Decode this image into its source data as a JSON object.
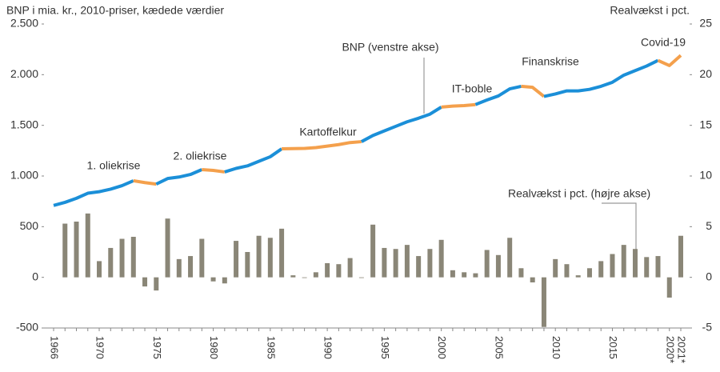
{
  "chart_data": {
    "type": "bar-line",
    "title": "BNP i mia. kr., 2010-priser, kædede værdier",
    "y2_title": "Realvækst i pct.",
    "categories": [
      "1966",
      null,
      null,
      null,
      "1970",
      null,
      null,
      null,
      null,
      "1975",
      null,
      null,
      null,
      null,
      "1980",
      null,
      null,
      null,
      null,
      "1985",
      null,
      null,
      null,
      null,
      "1990",
      null,
      null,
      null,
      null,
      "1995",
      null,
      null,
      null,
      null,
      "2000",
      null,
      null,
      null,
      null,
      "2005",
      null,
      null,
      null,
      null,
      "2010",
      null,
      null,
      null,
      null,
      "2015",
      null,
      null,
      null,
      null,
      "2020*",
      "2021*"
    ],
    "ylim": [
      -500,
      2500
    ],
    "yticks": [
      {
        "value": -500,
        "label": "-500"
      },
      0,
      500,
      {
        "value": 1000,
        "label": "1.000"
      },
      {
        "value": 1500,
        "label": "1.500"
      },
      {
        "value": 2000,
        "label": "2.000"
      },
      {
        "value": 2500,
        "label": "2.500"
      }
    ],
    "y2lim": [
      -5,
      25
    ],
    "y2ticks": [
      -5,
      0,
      5,
      10,
      15,
      20,
      25
    ],
    "series": [
      {
        "name": "BNP (venstre akse)",
        "type": "line",
        "axis": "y",
        "values": [
          709,
          740,
          780,
          830,
          845,
          870,
          905,
          953,
          935,
          920,
          975,
          990,
          1015,
          1063,
          1055,
          1040,
          1075,
          1100,
          1145,
          1190,
          1268,
          1270,
          1272,
          1280,
          1295,
          1310,
          1330,
          1339,
          1400,
          1445,
          1490,
          1535,
          1570,
          1610,
          1680,
          1690,
          1695,
          1705,
          1750,
          1790,
          1860,
          1885,
          1875,
          1785,
          1810,
          1840,
          1840,
          1855,
          1885,
          1925,
          1995,
          2040,
          2085,
          2140,
          2090,
          2190
        ],
        "colors": [
          "#1b8fd8",
          "#1b8fd8",
          "#1b8fd8",
          "#1b8fd8",
          "#1b8fd8",
          "#1b8fd8",
          "#1b8fd8",
          "#1b8fd8",
          "#f4a04c",
          "#f4a04c",
          "#1b8fd8",
          "#1b8fd8",
          "#1b8fd8",
          "#1b8fd8",
          "#f4a04c",
          "#f4a04c",
          "#1b8fd8",
          "#1b8fd8",
          "#1b8fd8",
          "#1b8fd8",
          "#1b8fd8",
          "#f4a04c",
          "#f4a04c",
          "#f4a04c",
          "#f4a04c",
          "#f4a04c",
          "#f4a04c",
          "#f4a04c",
          "#1b8fd8",
          "#1b8fd8",
          "#1b8fd8",
          "#1b8fd8",
          "#1b8fd8",
          "#1b8fd8",
          "#1b8fd8",
          "#f4a04c",
          "#f4a04c",
          "#f4a04c",
          "#1b8fd8",
          "#1b8fd8",
          "#1b8fd8",
          "#1b8fd8",
          "#f4a04c",
          "#f4a04c",
          "#1b8fd8",
          "#1b8fd8",
          "#1b8fd8",
          "#1b8fd8",
          "#1b8fd8",
          "#1b8fd8",
          "#1b8fd8",
          "#1b8fd8",
          "#1b8fd8",
          "#1b8fd8",
          "#f4a04c",
          "#f4a04c"
        ]
      },
      {
        "name": "Realvækst i pct. (højre akse)",
        "type": "bar",
        "axis": "y2",
        "color": "#8a8677",
        "values": [
          null,
          5.3,
          5.5,
          6.3,
          1.6,
          2.9,
          3.8,
          4.0,
          -0.9,
          -1.3,
          5.8,
          1.8,
          2.1,
          3.8,
          -0.4,
          -0.6,
          3.6,
          2.5,
          4.1,
          3.9,
          4.8,
          0.2,
          0,
          0.5,
          1.4,
          1.3,
          1.9,
          0,
          5.2,
          2.9,
          2.8,
          3.2,
          2.1,
          2.8,
          3.7,
          0.7,
          0.5,
          0.4,
          2.7,
          2.2,
          3.9,
          0.9,
          -0.5,
          -4.9,
          1.8,
          1.3,
          0.2,
          0.9,
          1.6,
          2.3,
          3.2,
          2.8,
          2.0,
          2.1,
          -2.0,
          4.1
        ]
      }
    ],
    "annotations": [
      "1. oliekrise",
      "2. oliekrise",
      "Kartoffelkur",
      "IT-boble",
      "Finanskrise",
      "Covid-19"
    ]
  }
}
